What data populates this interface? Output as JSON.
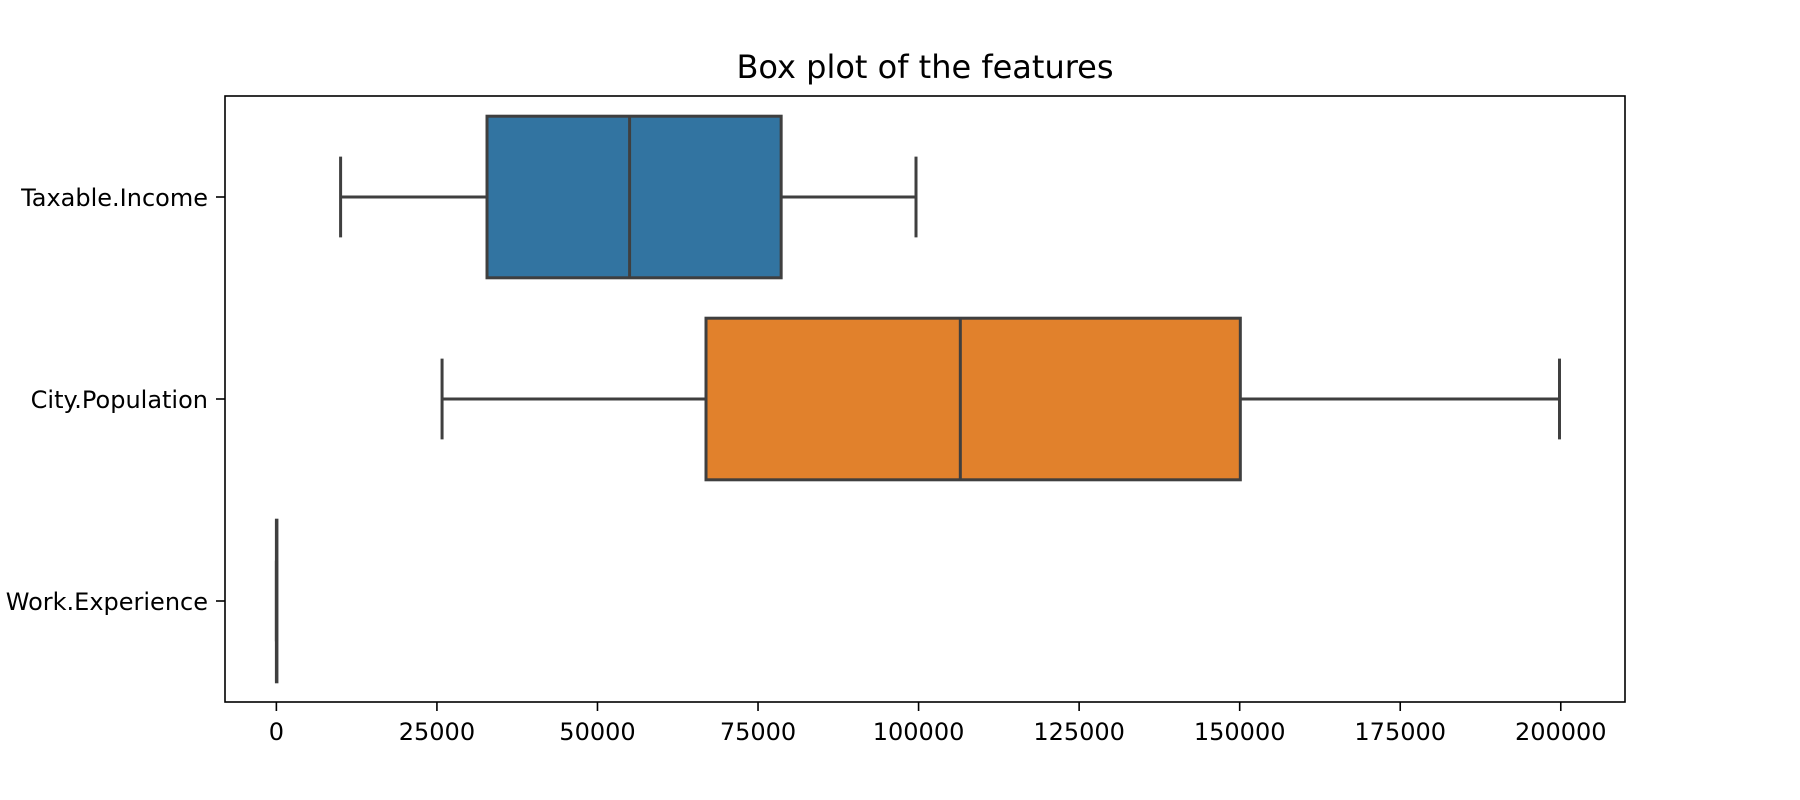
{
  "chart_data": {
    "type": "box",
    "orientation": "horizontal",
    "title": "Box plot of the features",
    "xlabel": "",
    "ylabel": "",
    "xlim": [
      -8000,
      210000
    ],
    "x_ticks": [
      0,
      25000,
      50000,
      75000,
      100000,
      125000,
      150000,
      175000,
      200000
    ],
    "grid": false,
    "categories": [
      "Taxable.Income",
      "City.Population",
      "Work.Experience"
    ],
    "series": [
      {
        "category": "Taxable.Income",
        "min": 10000,
        "q1": 32800,
        "median": 55000,
        "q3": 78600,
        "max": 99600,
        "color": "#3274a1"
      },
      {
        "category": "City.Population",
        "min": 25800,
        "q1": 66900,
        "median": 106500,
        "q3": 150100,
        "max": 199800,
        "color": "#e1812c"
      },
      {
        "category": "Work.Experience",
        "min": 0,
        "q1": 8,
        "median": 15,
        "q3": 23,
        "max": 30,
        "color": "#3a923a"
      }
    ]
  }
}
